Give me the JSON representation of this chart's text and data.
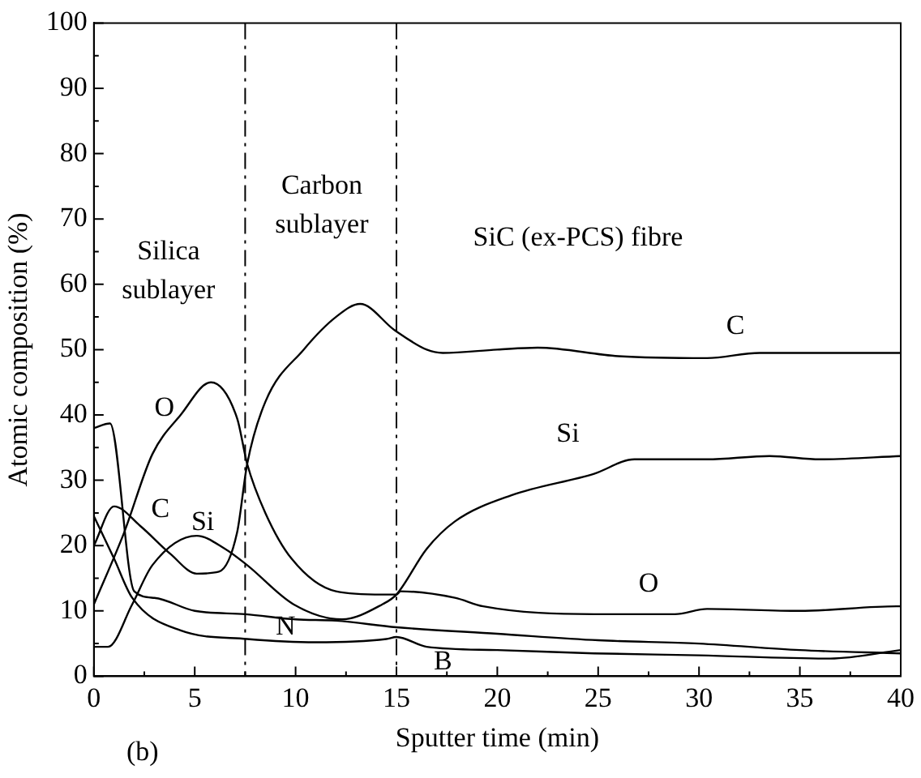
{
  "chart_data": {
    "type": "line",
    "xlabel": "Sputter time (min)",
    "ylabel": "Atomic composition (%)",
    "xlim": [
      0,
      40
    ],
    "xticks": [
      0,
      5,
      10,
      15,
      20,
      25,
      30,
      35,
      40
    ],
    "ylim": [
      0,
      100
    ],
    "yticks": [
      0,
      10,
      20,
      30,
      40,
      50,
      60,
      70,
      80,
      90,
      100
    ],
    "grid": false,
    "legend": false,
    "marker": "none",
    "line_style": "solid",
    "series": [
      {
        "name": "C",
        "color": "#000000",
        "x": [
          0,
          1,
          2.3,
          3.8,
          5.1,
          6.2,
          7.1,
          7.6,
          8.5,
          10.4,
          12,
          13.2,
          14.9,
          16.5,
          17.3,
          20,
          22,
          26,
          30.4,
          33,
          35.7,
          40
        ],
        "values": [
          20,
          26,
          23,
          18.7,
          15.7,
          16,
          22,
          32.5,
          42,
          50,
          55,
          57,
          53,
          50,
          49.5,
          50,
          50.3,
          49,
          48.7,
          49.5,
          49.5,
          49.5
        ]
      },
      {
        "name": "Si",
        "color": "#000000",
        "x": [
          0,
          0.7,
          1.9,
          2.9,
          5.1,
          6.5,
          7.6,
          9.9,
          12.3,
          14.3,
          15,
          16.5,
          17.9,
          20.7,
          24.8,
          26.8,
          30.4,
          33.5,
          36,
          40
        ],
        "values": [
          4.5,
          4.5,
          11,
          17,
          21.5,
          19.5,
          17,
          11,
          8.7,
          11,
          12.5,
          19.5,
          23.7,
          27.7,
          31,
          33.2,
          33.2,
          33.7,
          33.2,
          33.7
        ]
      },
      {
        "name": "O",
        "color": "#000000",
        "x": [
          0,
          1.5,
          2.9,
          4.3,
          5.8,
          7.1,
          7.6,
          8.5,
          9.8,
          12,
          14.3,
          15,
          15.2,
          17.9,
          19.3,
          24.8,
          28.8,
          30.4,
          35,
          39.8,
          40
        ],
        "values": [
          11,
          22,
          34,
          40,
          45,
          39.5,
          32.5,
          25,
          18,
          13,
          12.5,
          12.5,
          13,
          12,
          10.7,
          9.5,
          9.5,
          10.3,
          10,
          10.7,
          10.7
        ]
      },
      {
        "name": "N",
        "color": "#000000",
        "x": [
          0,
          0.8,
          2,
          3,
          5,
          7.5,
          10,
          12,
          15,
          20,
          25,
          30,
          35,
          40
        ],
        "values": [
          38,
          38.7,
          13,
          12,
          10,
          9.5,
          8.7,
          8.5,
          7.5,
          6.5,
          5.5,
          5,
          4,
          3.5
        ]
      },
      {
        "name": "B",
        "color": "#000000",
        "x": [
          0,
          1,
          1.9,
          4.3,
          7.6,
          11,
          14.5,
          15,
          16.5,
          20,
          24.8,
          30,
          36.5,
          40
        ],
        "values": [
          24.5,
          18,
          12,
          7,
          5.7,
          5.2,
          5.7,
          6,
          4.5,
          4,
          3.5,
          3.2,
          2.7,
          4
        ]
      }
    ],
    "ref_lines": [
      {
        "axis": "x",
        "value": 7.5,
        "line_style": "dashed",
        "color": "#000000"
      },
      {
        "axis": "x",
        "value": 15,
        "line_style": "dashed",
        "color": "#000000"
      }
    ],
    "annotations": [
      "Silica\nsublayer",
      "Carbon\nsublayer",
      "SiC (ex-PCS) fibre",
      "(b)"
    ]
  }
}
